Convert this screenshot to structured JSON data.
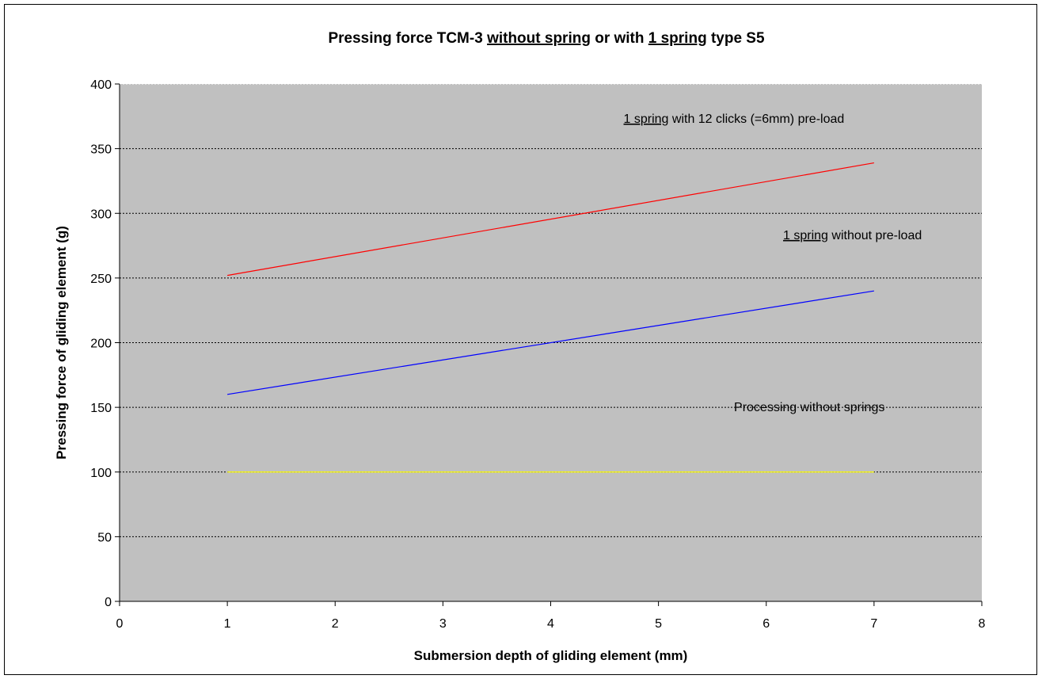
{
  "chart_data": {
    "type": "line",
    "title": {
      "parts": [
        {
          "text": "Pressing force TCM-3 ",
          "underline": false
        },
        {
          "text": "without spring",
          "underline": true
        },
        {
          "text": " or with ",
          "underline": false
        },
        {
          "text": "1 spring",
          "underline": true
        },
        {
          "text": " type S5",
          "underline": false
        }
      ]
    },
    "xlabel": "Submersion depth of gliding element (mm)",
    "ylabel": "Pressing force of gliding element (g)",
    "xlim": [
      0,
      8
    ],
    "ylim": [
      0,
      400
    ],
    "xticks": [
      0,
      1,
      2,
      3,
      4,
      5,
      6,
      7,
      8
    ],
    "yticks": [
      0,
      50,
      100,
      150,
      200,
      250,
      300,
      350,
      400
    ],
    "grid": {
      "y_major": true,
      "style": "dotted"
    },
    "plot_background": "#c0c0c0",
    "series": [
      {
        "color": "#ff0000",
        "x": [
          1,
          7
        ],
        "y": [
          252,
          339
        ]
      },
      {
        "color": "#0000ff",
        "x": [
          1,
          7
        ],
        "y": [
          160,
          240
        ]
      },
      {
        "color": "#ffff00",
        "x": [
          1,
          7
        ],
        "y": [
          100,
          100
        ]
      }
    ],
    "annotations": [
      {
        "parts": [
          {
            "text": "1 spring",
            "underline": true
          },
          {
            "text": " with 12 clicks (=6mm) pre-load",
            "underline": false
          }
        ],
        "x": 5.7,
        "y": 370
      },
      {
        "parts": [
          {
            "text": "1 spring",
            "underline": true
          },
          {
            "text": " without pre-load",
            "underline": false
          }
        ],
        "x": 6.8,
        "y": 280
      },
      {
        "parts": [
          {
            "text": "Processing without springs",
            "underline": false
          }
        ],
        "x": 6.4,
        "y": 147
      }
    ]
  }
}
